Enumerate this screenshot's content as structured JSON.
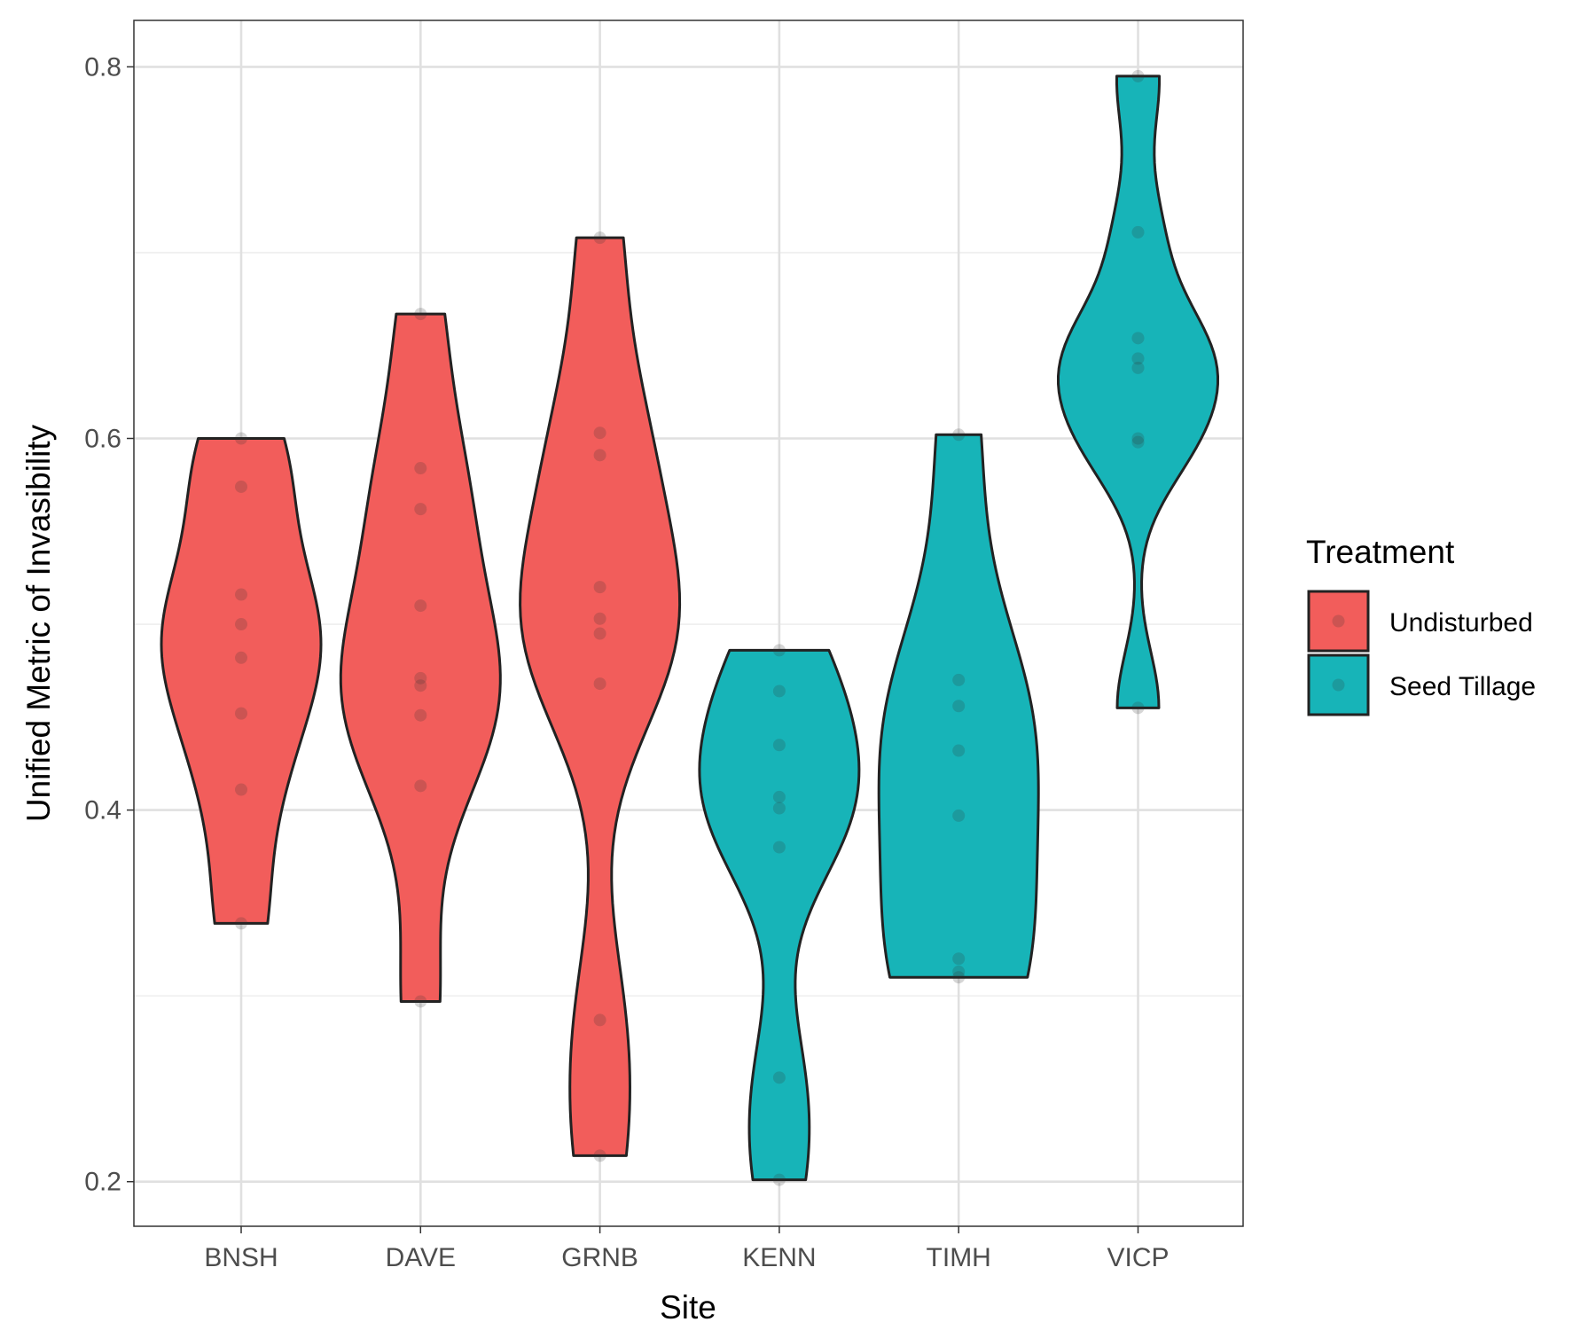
{
  "chart_data": {
    "type": "violin",
    "xlabel": "Site",
    "ylabel": "Unified Metric of Invasibility",
    "ylim": [
      0.176,
      0.825
    ],
    "yticks": [
      "0.2",
      "0.4",
      "0.6",
      "0.8"
    ],
    "categories": [
      "BNSH",
      "DAVE",
      "GRNB",
      "KENN",
      "TIMH",
      "VICP"
    ],
    "grid": true,
    "legend": {
      "title": "Treatment",
      "position": "right",
      "entries": [
        {
          "label": "Undisturbed",
          "color": "#f25d5b"
        },
        {
          "label": "Seed Tillage",
          "color": "#17b4b8"
        }
      ]
    },
    "series": [
      {
        "site": "BNSH",
        "treatment": "Undisturbed",
        "points": [
          0.6,
          0.574,
          0.516,
          0.5,
          0.482,
          0.452,
          0.411,
          0.339
        ]
      },
      {
        "site": "DAVE",
        "treatment": "Undisturbed",
        "points": [
          0.667,
          0.584,
          0.562,
          0.51,
          0.471,
          0.467,
          0.451,
          0.413,
          0.297
        ]
      },
      {
        "site": "GRNB",
        "treatment": "Undisturbed",
        "points": [
          0.708,
          0.603,
          0.591,
          0.52,
          0.503,
          0.495,
          0.468,
          0.287,
          0.214
        ]
      },
      {
        "site": "KENN",
        "treatment": "Seed Tillage",
        "points": [
          0.486,
          0.464,
          0.435,
          0.407,
          0.401,
          0.38,
          0.256,
          0.201
        ]
      },
      {
        "site": "TIMH",
        "treatment": "Seed Tillage",
        "points": [
          0.602,
          0.47,
          0.456,
          0.432,
          0.397,
          0.32,
          0.313,
          0.31
        ]
      },
      {
        "site": "VICP",
        "treatment": "Seed Tillage",
        "points": [
          0.795,
          0.711,
          0.654,
          0.643,
          0.638,
          0.6,
          0.598,
          0.455
        ]
      }
    ]
  }
}
